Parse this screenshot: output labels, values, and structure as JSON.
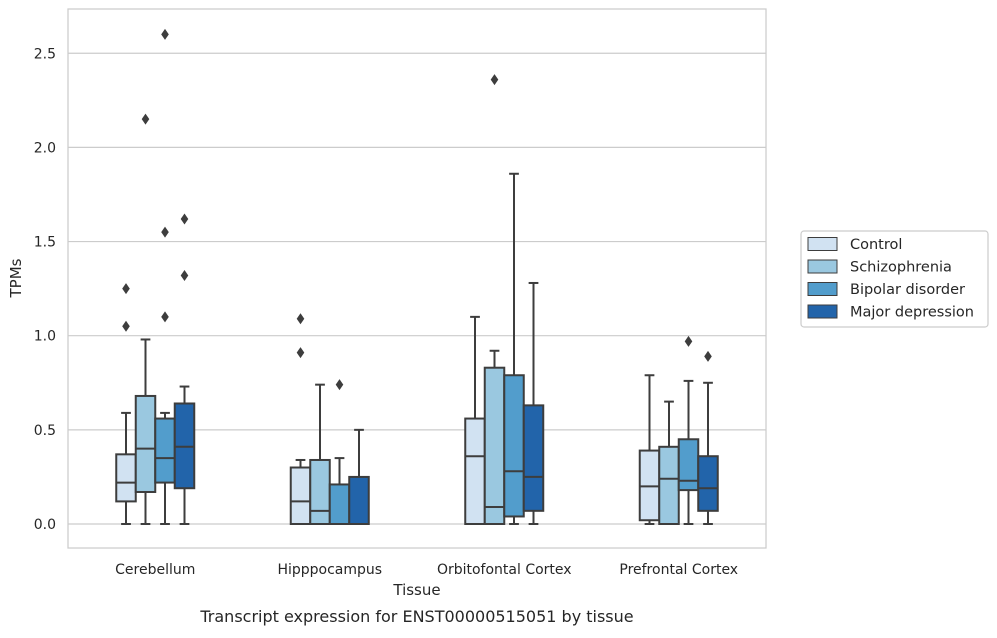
{
  "chart_data": {
    "type": "box",
    "title": "",
    "xlabel": "Tissue",
    "ylabel": "TPMs",
    "caption": "Transcript expression for ENST00000515051 by tissue",
    "categories": [
      "Cerebellum",
      "Hipppocampus",
      "Orbitofontal Cortex",
      "Prefrontal Cortex"
    ],
    "ylim": [
      -0.13,
      2.75
    ],
    "yticks": [
      "0.0",
      "0.5",
      "1.0",
      "1.5",
      "2.0",
      "2.5"
    ],
    "grid": true,
    "legend": {
      "position": "right",
      "entries": [
        "Control",
        "Schizophrenia",
        "Bipolar disorder",
        "Major depression"
      ]
    },
    "colors": [
      "#d1e2f2",
      "#9ac8e0",
      "#529dcc",
      "#2264aa"
    ],
    "series": [
      {
        "name": "Control",
        "boxes": [
          {
            "min": 0.0,
            "q1": 0.12,
            "median": 0.22,
            "q3": 0.37,
            "max": 0.59,
            "outliers": [
              1.05,
              1.25
            ]
          },
          {
            "min": 0.0,
            "q1": 0.0,
            "median": 0.12,
            "q3": 0.3,
            "max": 0.34,
            "outliers": [
              0.91,
              1.09
            ]
          },
          {
            "min": 0.0,
            "q1": 0.0,
            "median": 0.36,
            "q3": 0.56,
            "max": 1.1,
            "outliers": []
          },
          {
            "min": 0.0,
            "q1": 0.02,
            "median": 0.2,
            "q3": 0.39,
            "max": 0.79,
            "outliers": []
          }
        ]
      },
      {
        "name": "Schizophrenia",
        "boxes": [
          {
            "min": 0.0,
            "q1": 0.17,
            "median": 0.4,
            "q3": 0.68,
            "max": 0.98,
            "outliers": [
              2.15
            ]
          },
          {
            "min": 0.0,
            "q1": 0.0,
            "median": 0.07,
            "q3": 0.34,
            "max": 0.74,
            "outliers": []
          },
          {
            "min": 0.0,
            "q1": 0.0,
            "median": 0.09,
            "q3": 0.83,
            "max": 0.92,
            "outliers": [
              2.36
            ]
          },
          {
            "min": 0.0,
            "q1": 0.0,
            "median": 0.24,
            "q3": 0.41,
            "max": 0.65,
            "outliers": []
          }
        ]
      },
      {
        "name": "Bipolar disorder",
        "boxes": [
          {
            "min": 0.0,
            "q1": 0.22,
            "median": 0.35,
            "q3": 0.56,
            "max": 0.59,
            "outliers": [
              1.1,
              1.55,
              2.6
            ]
          },
          {
            "min": 0.0,
            "q1": 0.0,
            "median": 0.0,
            "q3": 0.21,
            "max": 0.35,
            "outliers": [
              0.74
            ]
          },
          {
            "min": 0.0,
            "q1": 0.04,
            "median": 0.28,
            "q3": 0.79,
            "max": 1.86,
            "outliers": []
          },
          {
            "min": 0.0,
            "q1": 0.18,
            "median": 0.23,
            "q3": 0.45,
            "max": 0.76,
            "outliers": [
              0.97
            ]
          }
        ]
      },
      {
        "name": "Major depression",
        "boxes": [
          {
            "min": 0.0,
            "q1": 0.19,
            "median": 0.41,
            "q3": 0.64,
            "max": 0.73,
            "outliers": [
              1.32,
              1.62
            ]
          },
          {
            "min": 0.0,
            "q1": 0.0,
            "median": 0.0,
            "q3": 0.25,
            "max": 0.5,
            "outliers": []
          },
          {
            "min": 0.0,
            "q1": 0.07,
            "median": 0.25,
            "q3": 0.63,
            "max": 1.28,
            "outliers": []
          },
          {
            "min": 0.0,
            "q1": 0.07,
            "median": 0.19,
            "q3": 0.36,
            "max": 0.75,
            "outliers": [
              0.89
            ]
          }
        ]
      }
    ]
  }
}
